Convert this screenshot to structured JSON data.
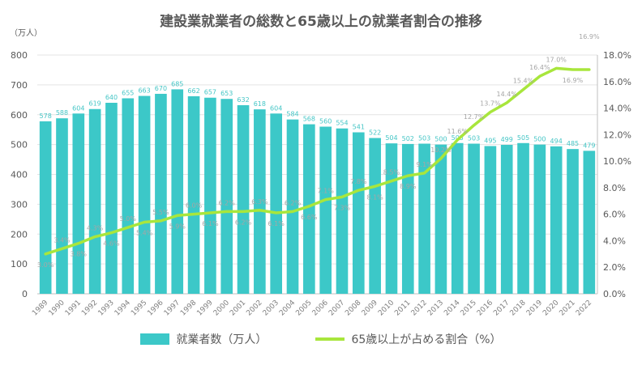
{
  "chart_data": {
    "type": "bar+line",
    "title": "建設業就業者の総数と65歳以上の就業者割合の推移",
    "y_left_unit": "（万人）",
    "ylim_left": [
      0,
      800
    ],
    "yticks_left": [
      "0",
      "100",
      "200",
      "300",
      "400",
      "500",
      "600",
      "700",
      "800"
    ],
    "ylim_right": [
      0,
      18
    ],
    "yticks_right": [
      "0.0%",
      "2.0%",
      "4.0%",
      "6.0%",
      "8.0%",
      "10.0%",
      "12.0%",
      "14.0%",
      "16.0%",
      "18.0%"
    ],
    "categories": [
      "1989",
      "1990",
      "1991",
      "1992",
      "1993",
      "1994",
      "1995",
      "1996",
      "1997",
      "1998",
      "1999",
      "2000",
      "2001",
      "2002",
      "2003",
      "2004",
      "2005",
      "2006",
      "2007",
      "2008",
      "2009",
      "2010",
      "2011",
      "2012",
      "2013",
      "2014",
      "2015",
      "2016",
      "2017",
      "2018",
      "2019",
      "2020",
      "2021",
      "2022"
    ],
    "series": [
      {
        "name": "就業者数（万人）",
        "type": "bar",
        "axis": "left",
        "color": "#3cc8c8",
        "values": [
          578,
          588,
          604,
          619,
          640,
          655,
          663,
          670,
          685,
          662,
          657,
          653,
          632,
          618,
          604,
          584,
          568,
          560,
          554,
          541,
          522,
          504,
          502,
          503,
          500,
          505,
          503,
          495,
          499,
          505,
          500,
          494,
          485,
          479
        ]
      },
      {
        "name": "65歳以上が占める割合（%）",
        "type": "line",
        "axis": "right",
        "color": "#a8e63c",
        "values": [
          3.0,
          3.4,
          3.8,
          4.3,
          4.6,
          5.0,
          5.4,
          5.5,
          5.9,
          6.0,
          6.1,
          6.2,
          6.2,
          6.3,
          6.1,
          6.2,
          6.6,
          7.1,
          7.3,
          7.8,
          8.1,
          8.5,
          8.9,
          9.1,
          10.2,
          11.6,
          12.7,
          13.7,
          14.4,
          15.4,
          16.4,
          17.0,
          16.9,
          16.9
        ],
        "labels": [
          "3.0%",
          "3.4%",
          "3.8%",
          "4.3%",
          "4.6%",
          "5.0%",
          "5.4%",
          "5.5%",
          "5.9%",
          "6.0%",
          "6.1%",
          "6.2%",
          "6.2%",
          "6.3%",
          "6.1%",
          "6.2%",
          "6.6%",
          "7.1%",
          "7.3%",
          "7.8%",
          "8.1%",
          "8.5%",
          "8.9%",
          "9.1%",
          "10.2%",
          "11.6%",
          "12.7%",
          "13.7%",
          "14.4%",
          "15.4%",
          "16.4%",
          "17.0%",
          "16.9%",
          "16.9%"
        ]
      }
    ],
    "legend_position": "bottom",
    "grid": true
  },
  "legend": {
    "bar_label": "就業者数（万人）",
    "line_label": "65歳以上が占める割合（%）"
  }
}
